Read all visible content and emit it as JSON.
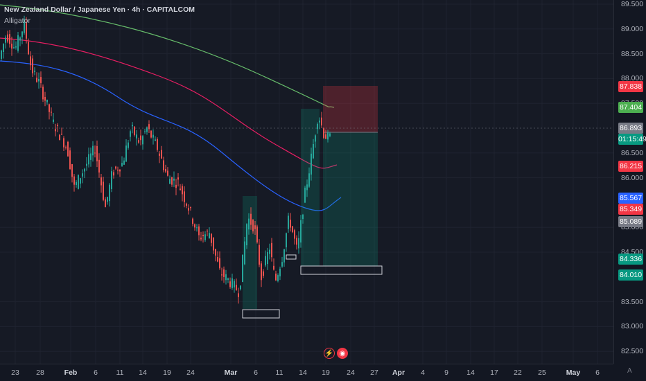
{
  "header": {
    "title": "New Zealand Dollar / Japanese Yen · 4h · CAPITALCOM",
    "indicator": "Alligator"
  },
  "price_axis": {
    "ticks": [
      "89.500",
      "89.000",
      "88.500",
      "88.000",
      "87.500",
      "86.500",
      "86.000",
      "85.000",
      "84.500",
      "83.500",
      "83.000",
      "82.500"
    ],
    "labels": {
      "target": {
        "value": "87.838",
        "color": "#f23645"
      },
      "ma_green": {
        "value": "87.404",
        "color": "#4caf50"
      },
      "current": {
        "value": "86.893",
        "color": "#787b86"
      },
      "countdown": {
        "value": "01:15:49",
        "color": "#089981"
      },
      "ma_red": {
        "value": "86.215",
        "color": "#f23645"
      },
      "ma_blue": {
        "value": "85.567",
        "color": "#2962ff"
      },
      "stop": {
        "value": "85.349",
        "color": "#f23645"
      },
      "entry": {
        "value": "85.089",
        "color": "#787b86"
      },
      "level1": {
        "value": "84.336",
        "color": "#089981"
      },
      "level2": {
        "value": "84.010",
        "color": "#089981"
      }
    }
  },
  "time_axis": {
    "ticks": [
      {
        "label": "23",
        "bold": false
      },
      {
        "label": "28",
        "bold": false
      },
      {
        "label": "Feb",
        "bold": true
      },
      {
        "label": "6",
        "bold": false
      },
      {
        "label": "11",
        "bold": false
      },
      {
        "label": "14",
        "bold": false
      },
      {
        "label": "19",
        "bold": false
      },
      {
        "label": "24",
        "bold": false
      },
      {
        "label": "Mar",
        "bold": true
      },
      {
        "label": "6",
        "bold": false
      },
      {
        "label": "11",
        "bold": false
      },
      {
        "label": "14",
        "bold": false
      },
      {
        "label": "19",
        "bold": false
      },
      {
        "label": "24",
        "bold": false
      },
      {
        "label": "27",
        "bold": false
      },
      {
        "label": "Apr",
        "bold": true
      },
      {
        "label": "4",
        "bold": false
      },
      {
        "label": "9",
        "bold": false
      },
      {
        "label": "14",
        "bold": false
      },
      {
        "label": "17",
        "bold": false
      },
      {
        "label": "22",
        "bold": false
      },
      {
        "label": "25",
        "bold": false
      },
      {
        "label": "May",
        "bold": true
      },
      {
        "label": "6",
        "bold": false
      }
    ],
    "auto_scale": "A"
  },
  "colors": {
    "up": "#26a69a",
    "down": "#ef5350",
    "jaw": "#2962ff",
    "teeth": "#e91e63",
    "lips": "#66bb6a",
    "background": "#161a25"
  },
  "icons": {
    "flash": "lightning-icon",
    "record": "record-icon"
  }
}
